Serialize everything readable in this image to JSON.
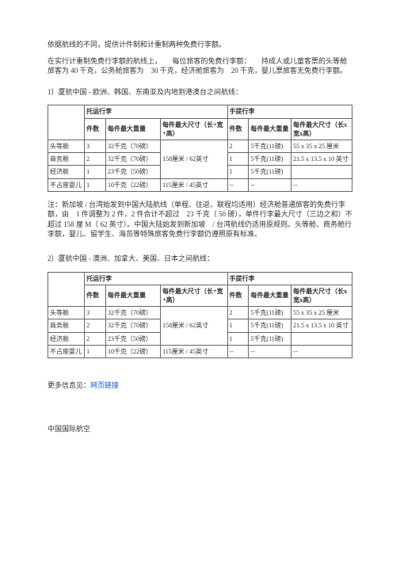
{
  "intro": {
    "p1": "依据航线的不同，提供计件制和计重制两种免费行李额。",
    "p2": "在实行计重制免费行李额的航线上，　　每位旅客的免费行李额：　　持成人或儿童客票的头等舱旅客为 40 千克，公务舱旅客为　30 千克，经济舱旅客为　20 千克，婴儿票旅客无免费行李额。"
  },
  "section1_title": "1）厦航中国  - 欧洲、韩国、东南亚及内地到港澳台之间航线：",
  "section2_title": "2）厦航中国 - 澳洲、加拿大、美国、日本之间航线：",
  "table_headers": {
    "checked": "托运行李",
    "carry": "手提行李",
    "pieces": "件数",
    "max_weight": "每件最大重量",
    "max_size": "每件最大尺寸（长+宽+高）",
    "max_size2": "每件最大尺寸（长x宽x高）"
  },
  "cabins": {
    "first": "头等舱",
    "biz": "商务舱",
    "eco": "经济舱",
    "infant": "不占座婴儿"
  },
  "table1": {
    "first": {
      "cn": "3",
      "cw": "32千克（70磅）",
      "csz_rs": "158厘米 / 62英寸",
      "hn": "2",
      "hw": "5千克(11磅)",
      "hsz": "55 x 35 x 25 厘米"
    },
    "biz": {
      "cn": "2",
      "cw": "32千克（70磅）",
      "hn": "1",
      "hw": "5千克(11磅)",
      "hsz": "21.5 x 13.5 x 10 英寸"
    },
    "eco": {
      "cn": "1",
      "cw": "23千克（50磅）",
      "hn": "1",
      "hw": "5千克(11磅)",
      "hsz": ""
    },
    "infant": {
      "cn": "1",
      "cw": "10千克（22磅）",
      "csz": "115厘米 / 45英寸",
      "hn": "--",
      "hw": "--",
      "hsz": "--"
    }
  },
  "table2": {
    "first": {
      "cn": "3",
      "cw": "32千克（70磅）",
      "csz_rs": "158厘米 / 62英寸",
      "hn": "2",
      "hw": "5千克(11磅)",
      "hsz": "55 x 35 x 25 厘米"
    },
    "biz": {
      "cn": "2",
      "cw": "32千克（70磅）",
      "hn": "1",
      "hw": "5千克(11磅)",
      "hsz": "21.5 x 13.5 x 10 英寸"
    },
    "eco": {
      "cn": "2",
      "cw": "23千克（50磅）",
      "hn": "1",
      "hw": "5千克(11磅)",
      "hsz": ""
    },
    "infant": {
      "cn": "1",
      "cw": "10千克（22磅）",
      "csz": "115厘米 / 45英寸",
      "hn": "--",
      "hw": "--",
      "hsz": "--"
    }
  },
  "note1": "注：新加坡 / 台湾始发到中国大陆航线（单程、往返、联程均适用）经济舱普通旅客的免费行李额，由　1 件调整为 2 件，2 件合计不超过　23 千克（ 50 磅），单件行李最大尺寸（三边之和）不超过 158 厘 M（ 62 英寸）。中国大陆始发到新加坡　/ 台湾航线仍适用原规则。头等舱、商务舱行李额，婴儿、留学生、海员等特殊旅客免费行李额仍遵照原有标准。",
  "footer_label": "更多信息见：",
  "footer_link": "网页链接",
  "airline": "中国国际航空"
}
